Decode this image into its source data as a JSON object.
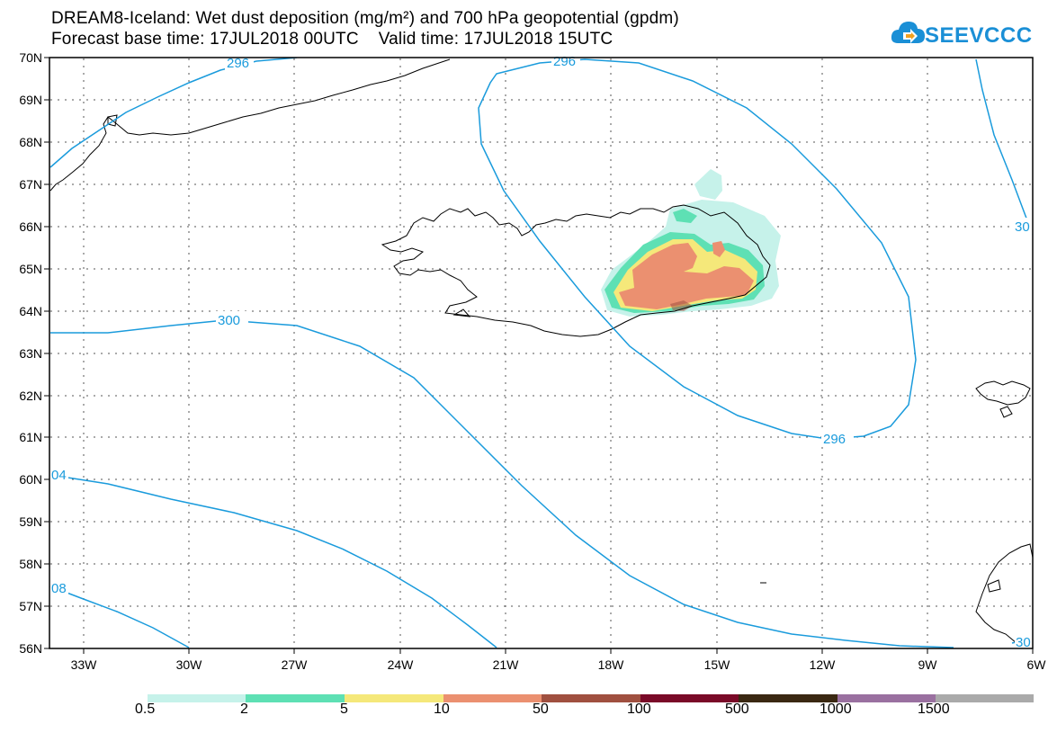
{
  "title_line1": "DREAM8-Iceland: Wet dust deposition (mg/m²) and 700 hPa geopotential (gpdm)",
  "title_line2": "Forecast base time: 17JUL2018 00UTC    Valid time: 17JUL2018 15UTC",
  "logo_text": "SEEVCCC",
  "colors": {
    "contour": "#1a9bdc",
    "coast": "#000000",
    "grid": "#555555"
  },
  "map": {
    "lat_labels": [
      "70N",
      "69N",
      "68N",
      "67N",
      "66N",
      "65N",
      "64N",
      "63N",
      "62N",
      "61N",
      "60N",
      "59N",
      "58N",
      "57N",
      "56N"
    ],
    "lon_labels": [
      "33W",
      "30W",
      "27W",
      "24W",
      "21W",
      "18W",
      "15W",
      "12W",
      "9W",
      "6W"
    ],
    "contour_labels": [
      "296",
      "296",
      "300",
      "296",
      "04",
      "08",
      "30",
      "30"
    ]
  },
  "legend": {
    "colors": [
      "#c6f2ea",
      "#5ee0b4",
      "#f5e87a",
      "#eb9070",
      "#a05040",
      "#7a0a28",
      "#3a2812",
      "#9a70a0",
      "#aaaaaa"
    ],
    "labels": [
      "0.5",
      "2",
      "5",
      "10",
      "50",
      "100",
      "500",
      "1000",
      "1500"
    ]
  }
}
